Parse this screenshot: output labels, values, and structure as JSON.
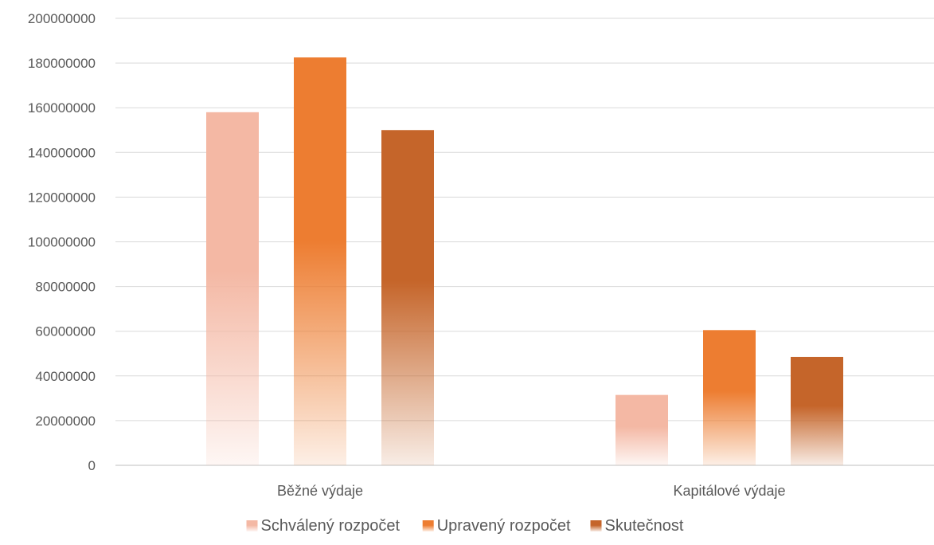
{
  "chart_data": {
    "type": "bar",
    "title": "",
    "xlabel": "",
    "ylabel": "",
    "categories": [
      "Běžné výdaje",
      "Kapitálové výdaje"
    ],
    "series": [
      {
        "name": "Schválený rozpočet",
        "values": [
          158000000,
          31500000
        ],
        "color": "#F4B8A4"
      },
      {
        "name": "Upravený rozpočet",
        "values": [
          182500000,
          60500000
        ],
        "color": "#ED7D31"
      },
      {
        "name": "Skutečnost",
        "values": [
          150000000,
          48500000
        ],
        "color": "#C5652A"
      }
    ],
    "ylim": [
      0,
      200000000
    ],
    "yticks": [
      "0",
      "20000000",
      "40000000",
      "60000000",
      "80000000",
      "100000000",
      "120000000",
      "140000000",
      "160000000",
      "180000000",
      "200000000"
    ],
    "grid": true,
    "legend_position": "bottom"
  }
}
